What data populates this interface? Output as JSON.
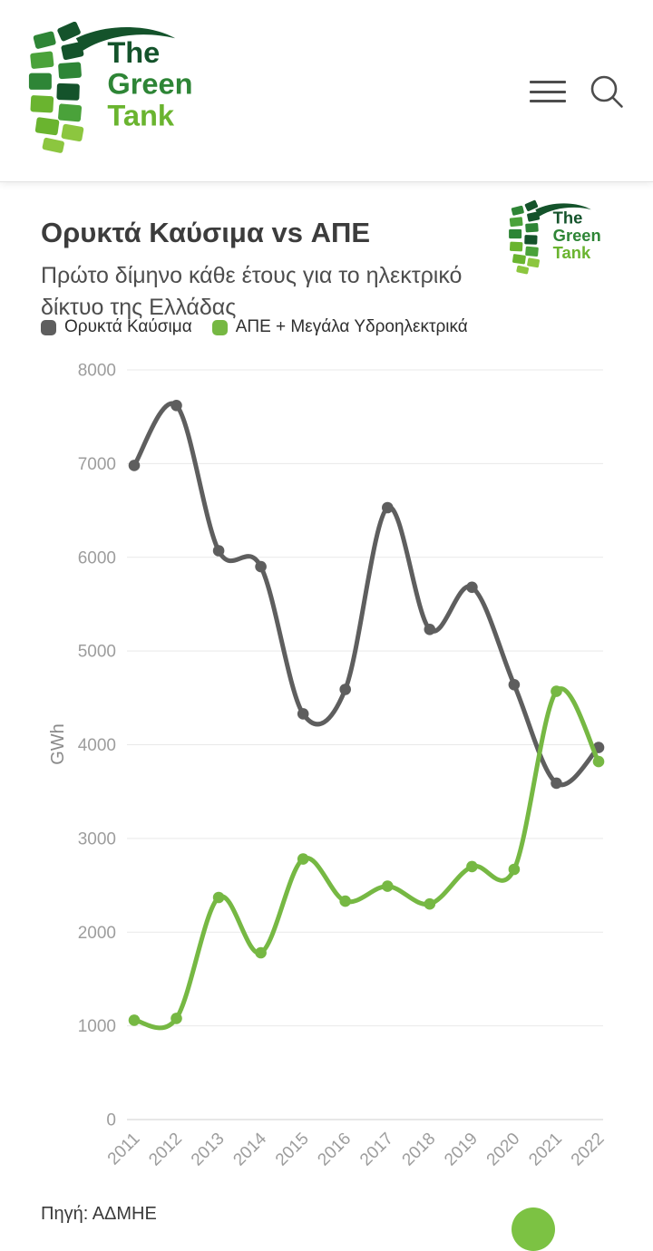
{
  "page": {
    "logo": {
      "words": [
        "The",
        "Green",
        "Tank"
      ],
      "text_colors": [
        "#14532b",
        "#2e8536",
        "#6ab42f"
      ],
      "tile_colors": [
        "#14532b",
        "#2e8536",
        "#4aa23a",
        "#6ab42f",
        "#8cc63f"
      ]
    },
    "floating_button_color": "#7cc243"
  },
  "chart_data": {
    "type": "line",
    "title": "Ορυκτά Καύσιμα vs ΑΠΕ",
    "subtitle": "Πρώτο δίμηνο κάθε έτους για το ηλεκτρικό δίκτυο της Ελλάδας",
    "source": "Πηγή: ΑΔΜΗΕ",
    "ylabel": "GWh",
    "x": [
      2011,
      2012,
      2013,
      2014,
      2015,
      2016,
      2017,
      2018,
      2019,
      2020,
      2021,
      2022
    ],
    "series": [
      {
        "name": "Ορυκτά Καύσιμα",
        "color": "#5e5e5e",
        "values": [
          6980,
          7620,
          6070,
          5900,
          4330,
          4590,
          6530,
          5230,
          5680,
          4640,
          3590,
          3970
        ]
      },
      {
        "name": "ΑΠΕ + Μεγάλα Υδροηλεκτρικά",
        "color": "#76b843",
        "values": [
          1060,
          1080,
          2370,
          1780,
          2780,
          2330,
          2490,
          2300,
          2700,
          2670,
          4570,
          3820
        ]
      }
    ],
    "ylim": [
      0,
      8000
    ],
    "yticks": [
      0,
      1000,
      2000,
      3000,
      4000,
      5000,
      6000,
      7000,
      8000
    ],
    "grid": true,
    "legend_position": "top",
    "style": {
      "grid_color": "#e9e9e9",
      "zero_line_color": "#cfcfcf",
      "tick_color": "#9d9d9d",
      "ylabel_color": "#8a8a8a"
    }
  }
}
